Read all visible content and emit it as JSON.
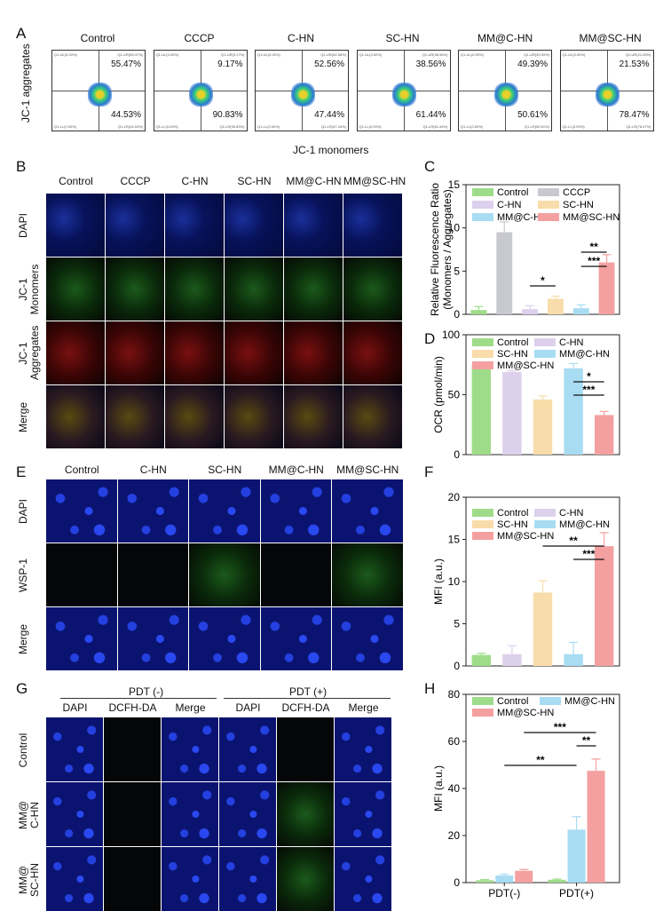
{
  "panels": {
    "a": "A",
    "b": "B",
    "c": "C",
    "d": "D",
    "e": "E",
    "f": "F",
    "g": "G",
    "h": "H"
  },
  "panel_a": {
    "groups": [
      "Control",
      "CCCP",
      "C-HN",
      "SC-HN",
      "MM@C-HN",
      "MM@SC-HN"
    ],
    "ur": [
      "55.47%",
      "9.17%",
      "52.56%",
      "38.56%",
      "49.39%",
      "21.53%"
    ],
    "lr": [
      "44.53%",
      "90.83%",
      "47.44%",
      "61.44%",
      "50.61%",
      "78.47%"
    ],
    "ul_small": [
      "Q1-UL(0.00%)",
      "Q1-UL(0.00%)",
      "Q1-UL(0.00%)",
      "Q1-UL(0.00%)",
      "Q1-UL(0.00%)",
      "Q1-UL(0.00%)"
    ],
    "ur_small": [
      "Q1-UR(55.47%)",
      "Q1-UR(9.17%)",
      "Q1-UR(52.56%)",
      "Q1-UR(38.56%)",
      "Q1-UR(49.39%)",
      "Q1-UR(21.53%)"
    ],
    "ll_small": [
      "Q1-LL(0.00%)",
      "Q1-LL(0.00%)",
      "Q1-LL(0.00%)",
      "Q1-LL(0.00%)",
      "Q1-LL(0.00%)",
      "Q1-LL(0.00%)"
    ],
    "lr_small": [
      "Q1-LR(44.53%)",
      "Q1-LR(90.83%)",
      "Q1-LR(47.44%)",
      "Q1-LR(61.44%)",
      "Q1-LR(50.61%)",
      "Q1-LR(78.47%)"
    ],
    "ylabel": "JC-1 aggregates",
    "xlabel": "JC-1 monomers"
  },
  "panel_b": {
    "cols": [
      "Control",
      "CCCP",
      "C-HN",
      "SC-HN",
      "MM@C-HN",
      "MM@SC-HN"
    ],
    "rows": [
      "DAPI",
      "JC-1\nMonomers",
      "JC-1\nAggregates",
      "Merge"
    ]
  },
  "panel_e": {
    "cols": [
      "Control",
      "C-HN",
      "SC-HN",
      "MM@C-HN",
      "MM@SC-HN"
    ],
    "rows": [
      "DAPI",
      "WSP-1",
      "Merge"
    ]
  },
  "panel_g": {
    "group_neg": "PDT (-)",
    "group_pos": "PDT (+)",
    "cols": [
      "DAPI",
      "DCFH-DA",
      "Merge",
      "DAPI",
      "DCFH-DA",
      "Merge"
    ],
    "rows": [
      "Control",
      "MM@\nC-HN",
      "MM@\nSC-HN"
    ]
  },
  "colors": {
    "control": "#9fdc8a",
    "cccp": "#c8c8d0",
    "chn": "#ddd0ec",
    "schn": "#f8dcaa",
    "mmchn": "#a8dcf2",
    "mmschn": "#f4a0a0"
  },
  "chart_data": [
    {
      "id": "C",
      "type": "bar",
      "ylabel": "Relative Fluorescence Ratio\n(Monomers / Aggregates)",
      "ylim": [
        0,
        15
      ],
      "yticks": [
        0,
        5,
        10,
        15
      ],
      "categories": [
        "Control",
        "CCCP",
        "C-HN",
        "SC-HN",
        "MM@C-HN",
        "MM@SC-HN"
      ],
      "values": [
        0.5,
        9.5,
        0.6,
        1.8,
        0.7,
        6.0
      ],
      "errors": [
        0.4,
        1.2,
        0.4,
        0.3,
        0.4,
        0.9
      ],
      "legend": [
        "Control",
        "CCCP",
        "C-HN",
        "SC-HN",
        "MM@C-HN",
        "MM@SC-HN"
      ],
      "sig": [
        "*",
        "**",
        "***"
      ]
    },
    {
      "id": "D",
      "type": "bar",
      "ylabel": "OCR (pmol/min)",
      "ylim": [
        0,
        100
      ],
      "yticks": [
        0,
        50,
        100
      ],
      "categories": [
        "Control",
        "C-HN",
        "SC-HN",
        "MM@C-HN",
        "MM@SC-HN"
      ],
      "values": [
        75,
        69,
        46,
        72,
        33
      ],
      "errors": [
        2,
        1,
        3,
        4,
        3
      ],
      "legend": [
        "Control",
        "C-HN",
        "SC-HN",
        "MM@C-HN",
        "MM@SC-HN"
      ],
      "sig": [
        "*",
        "***"
      ]
    },
    {
      "id": "F",
      "type": "bar",
      "ylabel": "MFI (a.u.)",
      "ylim": [
        0,
        20
      ],
      "yticks": [
        0,
        5,
        10,
        15,
        20
      ],
      "categories": [
        "Control",
        "C-HN",
        "SC-HN",
        "MM@C-HN",
        "MM@SC-HN"
      ],
      "values": [
        1.3,
        1.4,
        8.7,
        1.4,
        14.2
      ],
      "errors": [
        0.2,
        1.0,
        1.4,
        1.4,
        1.6
      ],
      "legend": [
        "Control",
        "C-HN",
        "SC-HN",
        "MM@C-HN",
        "MM@SC-HN"
      ],
      "sig": [
        "**",
        "***"
      ]
    },
    {
      "id": "H",
      "type": "bar",
      "ylabel": "MFI (a.u.)",
      "ylim": [
        0,
        80
      ],
      "yticks": [
        0,
        20,
        40,
        60,
        80
      ],
      "categories": [
        "PDT(-)",
        "PDT(+)"
      ],
      "series": [
        {
          "name": "Control",
          "values": [
            1.0,
            1.2
          ],
          "errors": [
            0.3,
            0.3
          ]
        },
        {
          "name": "MM@C-HN",
          "values": [
            3.0,
            22.5
          ],
          "errors": [
            0.6,
            5.5
          ]
        },
        {
          "name": "MM@SC-HN",
          "values": [
            5.0,
            47.5
          ],
          "errors": [
            0.6,
            5.0
          ]
        }
      ],
      "sig": [
        "**",
        "***",
        "**"
      ]
    }
  ]
}
